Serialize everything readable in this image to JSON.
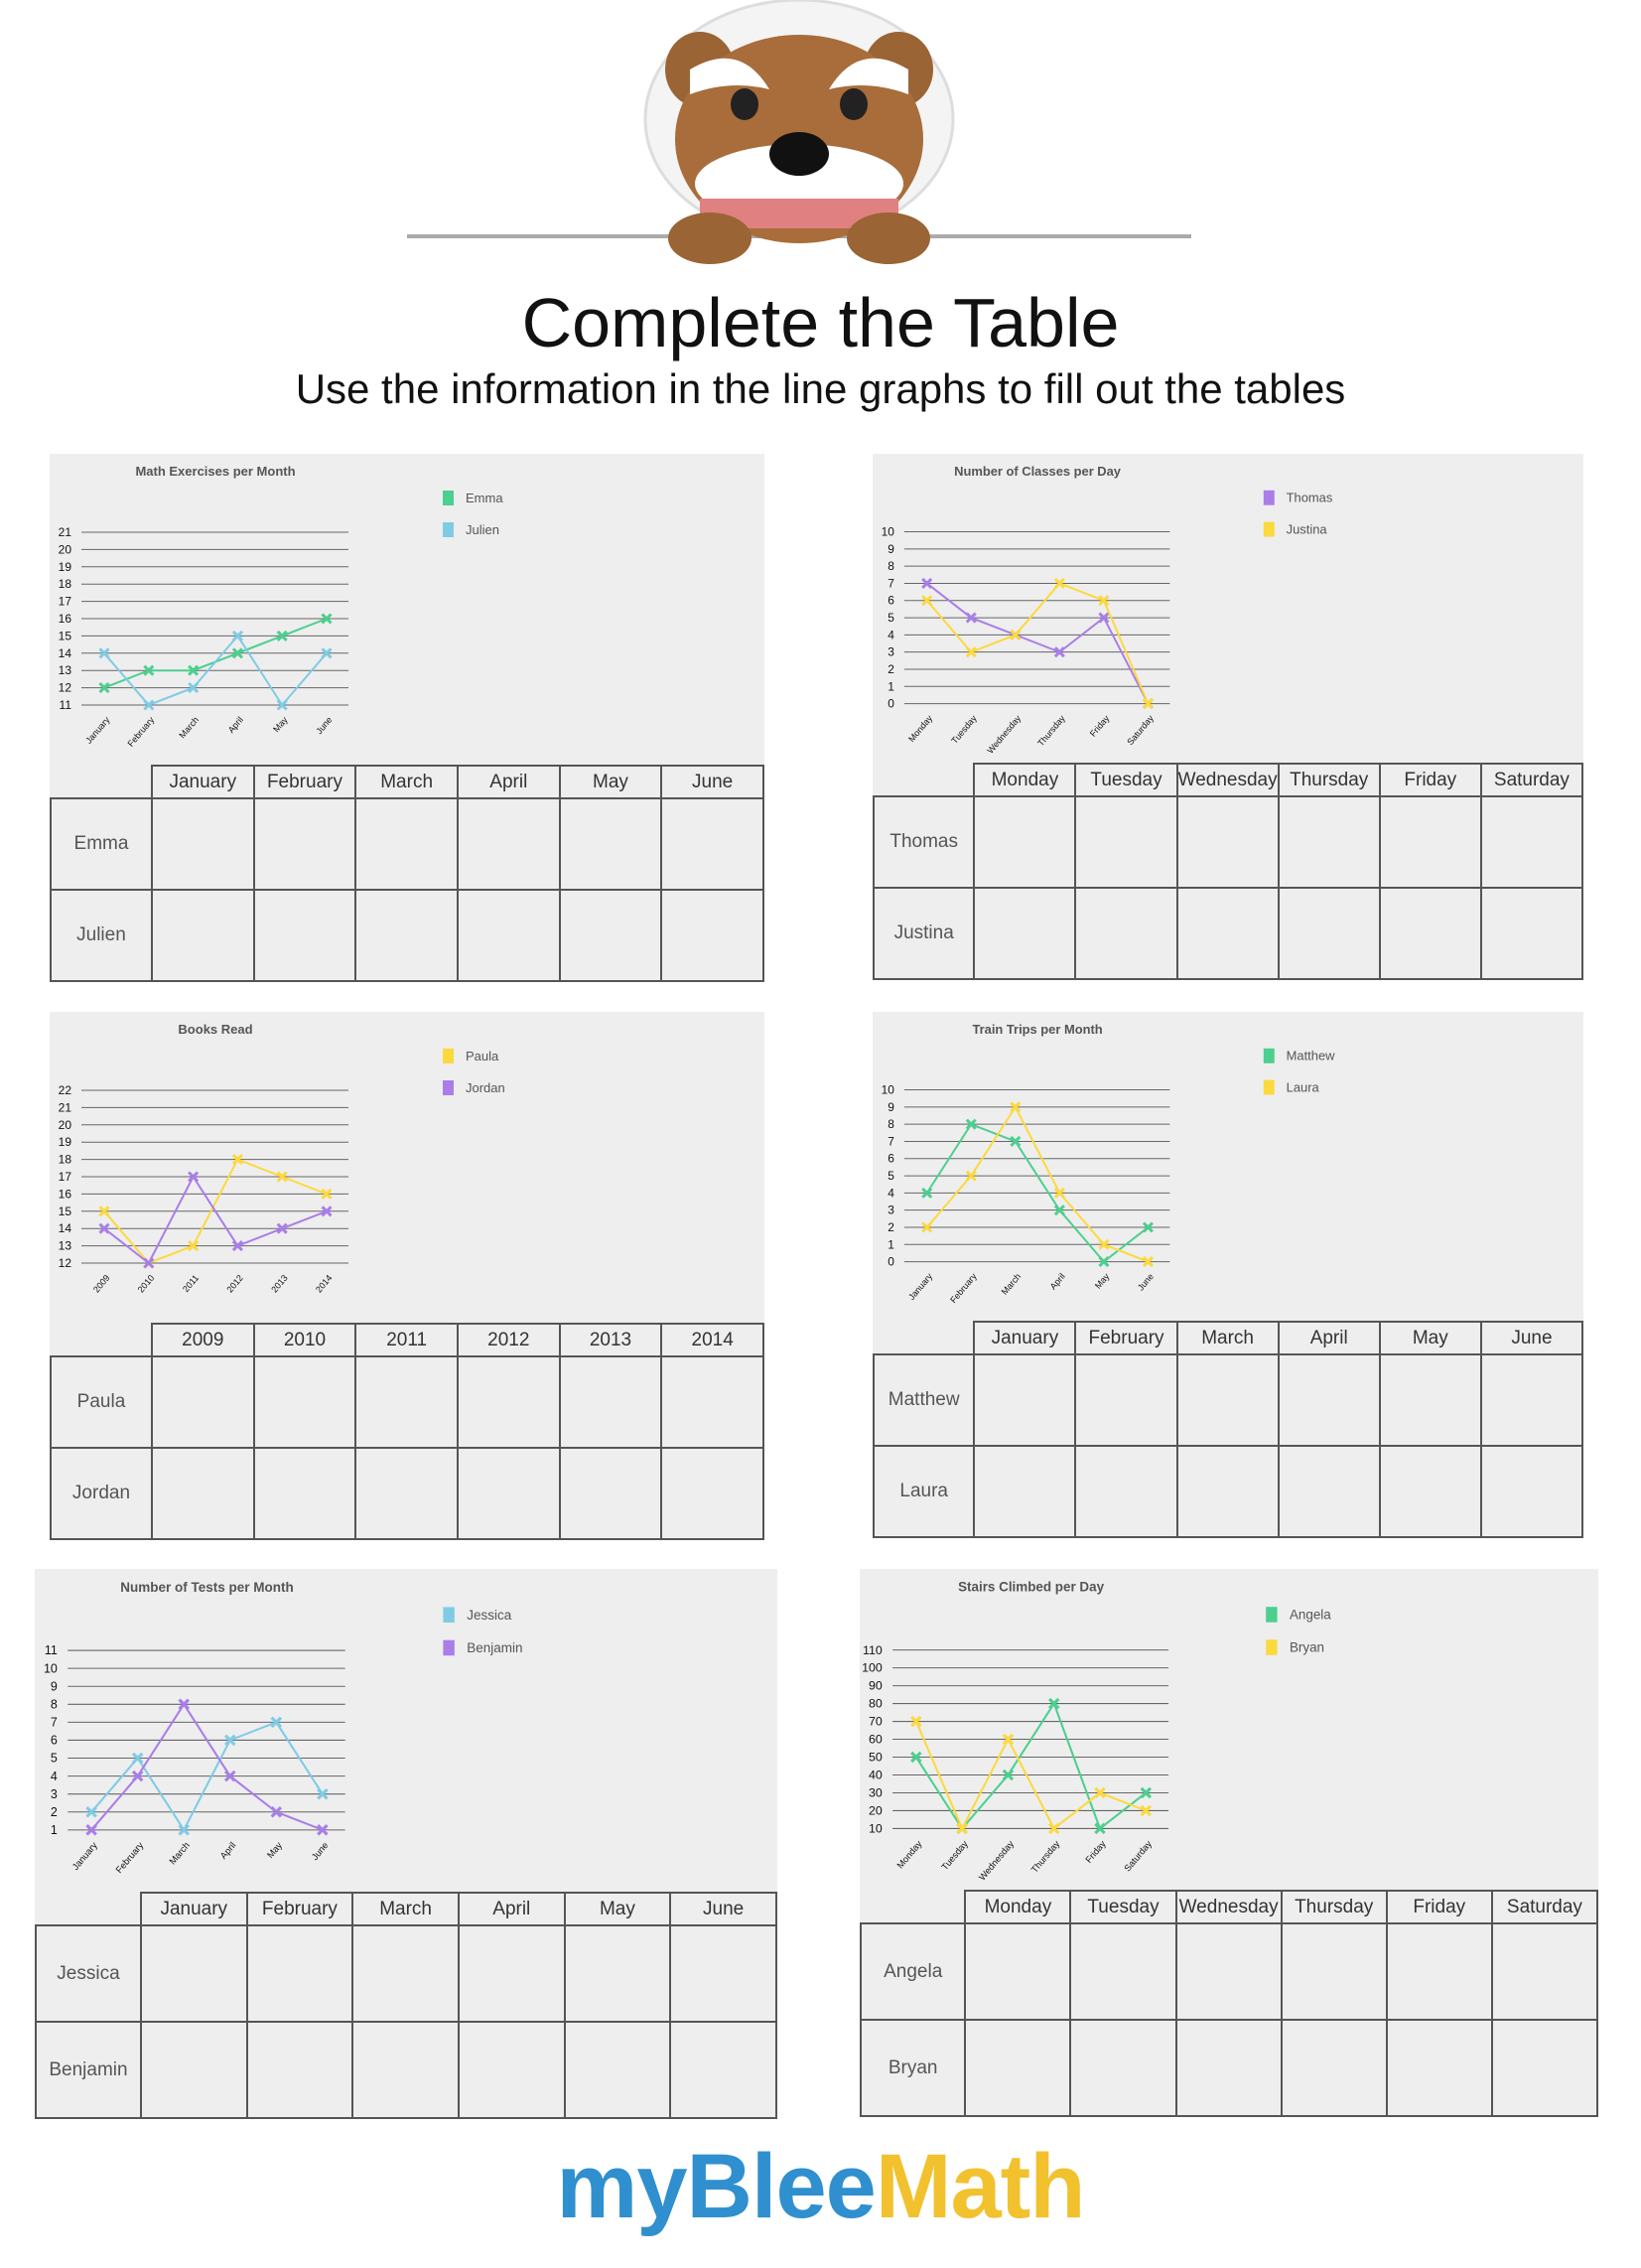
{
  "header": {
    "title": "Complete the Table",
    "subtitle": "Use the information in the line graphs to fill out the tables"
  },
  "logo": {
    "part1": "myBlee",
    "part2": "Math"
  },
  "colors": {
    "green": "#4ccf8f",
    "blue": "#7fcbe6",
    "purple": "#a97ee8",
    "yellow": "#fcd93d",
    "panel": "#eeeeee"
  },
  "chart_data": [
    {
      "type": "line",
      "title": "Math Exercises per Month",
      "categories": [
        "January",
        "February",
        "March",
        "April",
        "May",
        "June"
      ],
      "ylim": [
        11,
        21
      ],
      "ystep": 1,
      "grid": true,
      "legend": "top-right",
      "series": [
        {
          "name": "Emma",
          "color": "#4ccf8f",
          "values": [
            12,
            13,
            13,
            14,
            15,
            16
          ]
        },
        {
          "name": "Julien",
          "color": "#7fcbe6",
          "values": [
            14,
            11,
            12,
            15,
            11,
            14
          ]
        }
      ]
    },
    {
      "type": "line",
      "title": "Number of Classes per Day",
      "categories": [
        "Monday",
        "Tuesday",
        "Wednesday",
        "Thursday",
        "Friday",
        "Saturday"
      ],
      "ylim": [
        0,
        10
      ],
      "ystep": 1,
      "grid": true,
      "legend": "top-right",
      "series": [
        {
          "name": "Thomas",
          "color": "#a97ee8",
          "values": [
            7,
            5,
            4,
            3,
            5,
            0
          ]
        },
        {
          "name": "Justina",
          "color": "#fcd93d",
          "values": [
            6,
            3,
            4,
            7,
            6,
            0
          ]
        }
      ]
    },
    {
      "type": "line",
      "title": "Books Read",
      "categories": [
        "2009",
        "2010",
        "2011",
        "2012",
        "2013",
        "2014"
      ],
      "ylim": [
        12,
        22
      ],
      "ystep": 1,
      "grid": true,
      "legend": "top-right",
      "series": [
        {
          "name": "Paula",
          "color": "#fcd93d",
          "values": [
            15,
            12,
            13,
            18,
            17,
            16
          ]
        },
        {
          "name": "Jordan",
          "color": "#a97ee8",
          "values": [
            14,
            12,
            17,
            13,
            14,
            15
          ]
        }
      ]
    },
    {
      "type": "line",
      "title": "Train Trips per Month",
      "categories": [
        "January",
        "February",
        "March",
        "April",
        "May",
        "June"
      ],
      "ylim": [
        0,
        10
      ],
      "ystep": 1,
      "grid": true,
      "legend": "top-right",
      "series": [
        {
          "name": "Matthew",
          "color": "#4ccf8f",
          "values": [
            4,
            8,
            7,
            3,
            0,
            2
          ]
        },
        {
          "name": "Laura",
          "color": "#fcd93d",
          "values": [
            2,
            5,
            9,
            4,
            1,
            0
          ]
        }
      ]
    },
    {
      "type": "line",
      "title": "Number of Tests per Month",
      "categories": [
        "January",
        "February",
        "March",
        "April",
        "May",
        "June"
      ],
      "ylim": [
        1,
        11
      ],
      "ystep": 1,
      "grid": true,
      "legend": "top-right",
      "series": [
        {
          "name": "Jessica",
          "color": "#7fcbe6",
          "values": [
            2,
            5,
            1,
            6,
            7,
            3
          ]
        },
        {
          "name": "Benjamin",
          "color": "#a97ee8",
          "values": [
            1,
            4,
            8,
            4,
            2,
            1
          ]
        }
      ]
    },
    {
      "type": "line",
      "title": "Stairs Climbed per Day",
      "categories": [
        "Monday",
        "Tuesday",
        "Wednesday",
        "Thursday",
        "Friday",
        "Saturday"
      ],
      "ylim": [
        10,
        110
      ],
      "ystep": 10,
      "grid": true,
      "legend": "top-right",
      "series": [
        {
          "name": "Angela",
          "color": "#4ccf8f",
          "values": [
            50,
            10,
            40,
            80,
            10,
            30
          ]
        },
        {
          "name": "Bryan",
          "color": "#fcd93d",
          "values": [
            70,
            10,
            60,
            10,
            30,
            20
          ]
        }
      ]
    }
  ]
}
